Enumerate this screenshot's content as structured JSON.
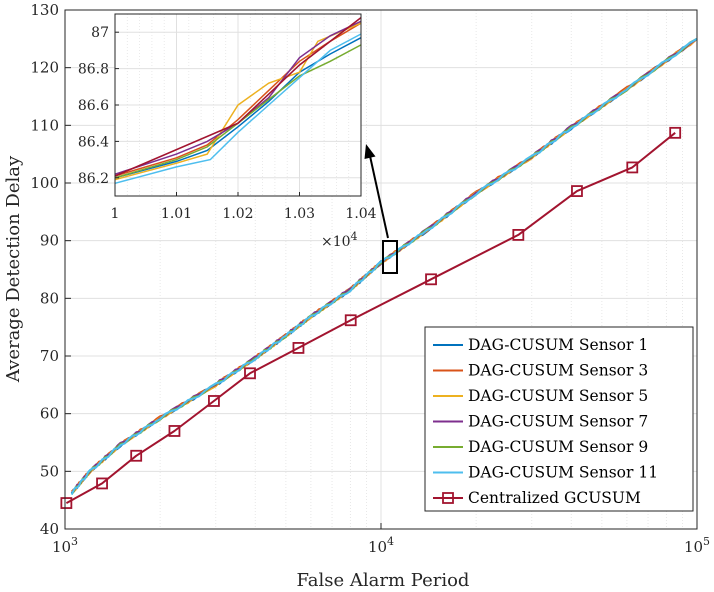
{
  "chart_data": {
    "type": "line",
    "title": "",
    "xlabel": "False Alarm Period",
    "ylabel": "Average Detection Delay",
    "xscale": "log",
    "xlim": [
      1000,
      100000
    ],
    "ylim": [
      40,
      130
    ],
    "grid": true,
    "x_ticks": [
      {
        "value": 1000,
        "base": "10",
        "exp": "3"
      },
      {
        "value": 10000,
        "base": "10",
        "exp": "4"
      },
      {
        "value": 100000,
        "base": "10",
        "exp": "5"
      }
    ],
    "y_ticks": [
      "40",
      "50",
      "60",
      "70",
      "80",
      "90",
      "100",
      "110",
      "120",
      "130"
    ],
    "legend_position": "bottom-right",
    "series": [
      {
        "name": "DAG-CUSUM Sensor 1",
        "color": "#0072BD",
        "marker": "none",
        "x": [
          1050,
          1200,
          1500,
          2000,
          3000,
          4000,
          5000,
          6000,
          8000,
          10000,
          14000,
          20000,
          30000,
          40000,
          60000,
          100000
        ],
        "y": [
          46.2,
          50.0,
          54.6,
          59.2,
          65.0,
          69.6,
          73.5,
          76.8,
          81.5,
          86.2,
          91.8,
          98.2,
          104.5,
          109.6,
          116.3,
          125.0
        ]
      },
      {
        "name": "DAG-CUSUM Sensor 3",
        "color": "#D95319",
        "marker": "none",
        "x": [
          1050,
          1200,
          1500,
          2000,
          3000,
          4000,
          5000,
          6000,
          8000,
          10000,
          14000,
          20000,
          30000,
          40000,
          60000,
          100000
        ],
        "y": [
          46.3,
          50.1,
          54.7,
          59.3,
          65.1,
          69.7,
          73.6,
          76.9,
          81.6,
          86.2,
          91.9,
          98.3,
          104.6,
          109.7,
          116.4,
          125.0
        ]
      },
      {
        "name": "DAG-CUSUM Sensor 5",
        "color": "#EDB120",
        "marker": "none",
        "x": [
          1050,
          1200,
          1500,
          2000,
          3000,
          4000,
          5000,
          6000,
          8000,
          10000,
          14000,
          20000,
          30000,
          40000,
          60000,
          100000
        ],
        "y": [
          46.2,
          50.0,
          54.6,
          59.2,
          65.0,
          69.6,
          73.5,
          76.8,
          81.5,
          86.2,
          91.8,
          98.2,
          104.5,
          109.6,
          116.3,
          125.0
        ]
      },
      {
        "name": "DAG-CUSUM Sensor 7",
        "color": "#7E2F8E",
        "marker": "none",
        "x": [
          1050,
          1200,
          1500,
          2000,
          3000,
          4000,
          5000,
          6000,
          8000,
          10000,
          14000,
          20000,
          30000,
          40000,
          60000,
          100000
        ],
        "y": [
          46.3,
          50.1,
          54.7,
          59.3,
          65.1,
          69.7,
          73.6,
          76.9,
          81.6,
          86.2,
          91.9,
          98.3,
          104.6,
          109.7,
          116.4,
          125.0
        ]
      },
      {
        "name": "DAG-CUSUM Sensor 9",
        "color": "#77AC30",
        "marker": "none",
        "x": [
          1050,
          1200,
          1500,
          2000,
          3000,
          4000,
          5000,
          6000,
          8000,
          10000,
          14000,
          20000,
          30000,
          40000,
          60000,
          100000
        ],
        "y": [
          46.2,
          50.0,
          54.6,
          59.2,
          65.0,
          69.6,
          73.5,
          76.8,
          81.5,
          86.2,
          91.8,
          98.2,
          104.5,
          109.6,
          116.3,
          125.0
        ]
      },
      {
        "name": "DAG-CUSUM Sensor 11",
        "color": "#4DBEEE",
        "marker": "none",
        "x": [
          1050,
          1200,
          1500,
          2000,
          3000,
          4000,
          5000,
          6000,
          8000,
          10000,
          14000,
          20000,
          30000,
          40000,
          60000,
          100000
        ],
        "y": [
          46.2,
          50.0,
          54.6,
          59.2,
          65.0,
          69.6,
          73.5,
          76.8,
          81.5,
          86.2,
          91.8,
          98.2,
          104.5,
          109.6,
          116.3,
          125.0
        ]
      },
      {
        "name": "Centralized GCUSUM",
        "color": "#A2142F",
        "marker": "square",
        "x": [
          1010,
          1310,
          1680,
          2220,
          2960,
          3850,
          5480,
          8020,
          14400,
          27200,
          41700,
          62400,
          85300
        ],
        "y": [
          44.5,
          47.9,
          52.7,
          57.0,
          62.2,
          67.0,
          71.4,
          76.2,
          83.3,
          91.0,
          98.6,
          102.7,
          108.7
        ]
      }
    ],
    "inset": {
      "xlim": [
        1,
        1.04
      ],
      "ylim": [
        86.1,
        87.1
      ],
      "x_ticks": [
        "1",
        "1.01",
        "1.02",
        "1.03",
        "1.04"
      ],
      "y_ticks": [
        "86.2",
        "86.4",
        "86.6",
        "86.8",
        "87"
      ],
      "x_multiplier_base": "×10",
      "x_multiplier_exp": "4",
      "series": [
        {
          "name": "DAG-CUSUM Sensor 1",
          "x": [
            1.0,
            1.01,
            1.015,
            1.02,
            1.025,
            1.03,
            1.035,
            1.04
          ],
          "y": [
            86.2,
            86.29,
            86.35,
            86.48,
            86.62,
            86.78,
            86.88,
            86.97
          ]
        },
        {
          "name": "DAG-CUSUM Sensor 3",
          "x": [
            1.0,
            1.01,
            1.015,
            1.02,
            1.025,
            1.03,
            1.035,
            1.04
          ],
          "y": [
            86.21,
            86.31,
            86.38,
            86.52,
            86.68,
            86.84,
            86.95,
            87.05
          ]
        },
        {
          "name": "DAG-CUSUM Sensor 5",
          "x": [
            1.0,
            1.01,
            1.015,
            1.02,
            1.025,
            1.03,
            1.033,
            1.04
          ],
          "y": [
            86.19,
            86.28,
            86.33,
            86.6,
            86.72,
            86.78,
            86.95,
            87.05
          ]
        },
        {
          "name": "DAG-CUSUM Sensor 7",
          "x": [
            1.0,
            1.01,
            1.015,
            1.02,
            1.025,
            1.03,
            1.035,
            1.04
          ],
          "y": [
            86.22,
            86.33,
            86.4,
            86.5,
            86.64,
            86.86,
            86.98,
            87.06
          ]
        },
        {
          "name": "DAG-CUSUM Sensor 9",
          "x": [
            1.0,
            1.01,
            1.015,
            1.02,
            1.025,
            1.03,
            1.035,
            1.04
          ],
          "y": [
            86.2,
            86.3,
            86.37,
            86.5,
            86.63,
            86.76,
            86.84,
            86.93
          ]
        },
        {
          "name": "DAG-CUSUM Sensor 11",
          "x": [
            1.0,
            1.01,
            1.0155,
            1.02,
            1.025,
            1.03,
            1.035,
            1.04
          ],
          "y": [
            86.17,
            86.26,
            86.3,
            86.45,
            86.6,
            86.75,
            86.9,
            86.99
          ]
        }
      ]
    }
  }
}
